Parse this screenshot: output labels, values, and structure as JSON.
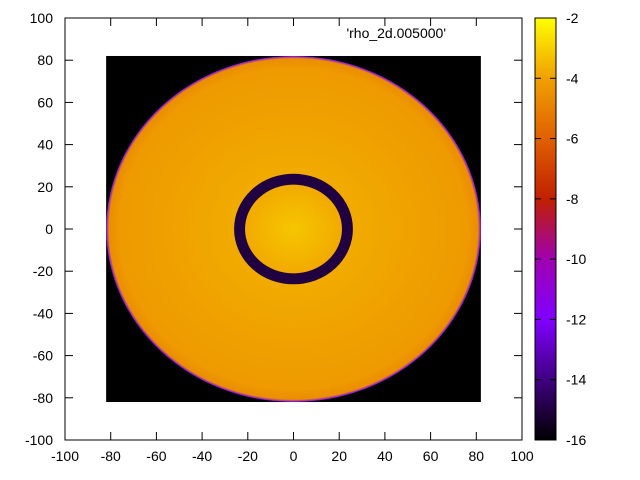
{
  "chart_data": {
    "type": "heatmap",
    "legend_entry": "'rho_2d.005000'",
    "legend_position": "top-right",
    "xlim": [
      -100,
      100
    ],
    "ylim": [
      -100,
      100
    ],
    "x_ticks": [
      -100,
      -80,
      -60,
      -40,
      -20,
      0,
      20,
      40,
      60,
      80,
      100
    ],
    "y_ticks": [
      -100,
      -80,
      -60,
      -40,
      -20,
      0,
      20,
      40,
      60,
      80,
      100
    ],
    "x_tick_labels": [
      "-100",
      "-80",
      "-60",
      "-40",
      "-20",
      "0",
      "20",
      "40",
      "60",
      "80",
      "100"
    ],
    "y_tick_labels": [
      "-100",
      "-80",
      "-60",
      "-40",
      "-20",
      "0",
      "20",
      "40",
      "60",
      "80",
      "100"
    ],
    "grid": false,
    "data_extent": {
      "x": [
        -82,
        82
      ],
      "y": [
        -82,
        82
      ]
    },
    "colorbar": {
      "range": [
        -16,
        -2
      ],
      "ticks": [
        -16,
        -14,
        -12,
        -10,
        -8,
        -6,
        -4,
        -2
      ],
      "tick_labels": [
        "-16",
        "-14",
        "-12",
        "-10",
        "-8",
        "-6",
        "-4",
        "-2"
      ],
      "palette": [
        {
          "value": -16,
          "color": "#000000"
        },
        {
          "value": -14,
          "color": "#400080"
        },
        {
          "value": -12,
          "color": "#8000ff"
        },
        {
          "value": -10,
          "color": "#a000b0"
        },
        {
          "value": -8,
          "color": "#c02000"
        },
        {
          "value": -6,
          "color": "#e06000"
        },
        {
          "value": -4,
          "color": "#f0a000"
        },
        {
          "value": -2,
          "color": "#ffff00"
        }
      ]
    },
    "field": {
      "background_value": -16,
      "outer_disk_radius": 82,
      "outer_disk_center_value": -3.6,
      "outer_disk_edge_value": -4.2,
      "boundary_value": -12,
      "inner_ring": {
        "center_radius": 23.5,
        "width": 5,
        "value": -15
      },
      "inner_disk_center_value": -3.2,
      "inner_disk_edge_value": -3.8
    }
  }
}
